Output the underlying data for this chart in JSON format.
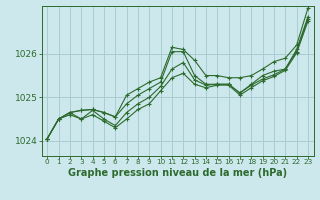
{
  "title": "Graphe pression niveau de la mer (hPa)",
  "bg_color": "#cce8ec",
  "grid_color": "#aacdd2",
  "line_color": "#2d6a2d",
  "xlim": [
    -0.5,
    23.5
  ],
  "ylim": [
    1023.65,
    1027.1
  ],
  "yticks": [
    1024,
    1025,
    1026
  ],
  "xtick_labels": [
    "0",
    "1",
    "2",
    "3",
    "4",
    "5",
    "6",
    "7",
    "8",
    "9",
    "10",
    "11",
    "12",
    "13",
    "14",
    "15",
    "16",
    "17",
    "18",
    "19",
    "20",
    "21",
    "22",
    "23"
  ],
  "series": [
    [
      1024.05,
      1024.5,
      1024.65,
      1024.7,
      1024.72,
      1024.65,
      1024.55,
      1025.05,
      1025.2,
      1025.35,
      1025.45,
      1026.15,
      1026.1,
      1025.85,
      1025.5,
      1025.5,
      1025.45,
      1025.45,
      1025.5,
      1025.65,
      1025.82,
      1025.9,
      1026.2,
      1027.05
    ],
    [
      1024.05,
      1024.5,
      1024.65,
      1024.7,
      1024.72,
      1024.65,
      1024.55,
      1024.85,
      1025.05,
      1025.2,
      1025.35,
      1026.05,
      1026.05,
      1025.5,
      1025.3,
      1025.3,
      1025.3,
      1025.1,
      1025.3,
      1025.5,
      1025.6,
      1025.65,
      1026.1,
      1026.85
    ],
    [
      1024.05,
      1024.5,
      1024.65,
      1024.5,
      1024.7,
      1024.5,
      1024.35,
      1024.65,
      1024.85,
      1025.0,
      1025.25,
      1025.65,
      1025.8,
      1025.4,
      1025.28,
      1025.3,
      1025.3,
      1025.1,
      1025.28,
      1025.42,
      1025.52,
      1025.65,
      1026.05,
      1026.8
    ],
    [
      1024.05,
      1024.5,
      1024.6,
      1024.5,
      1024.6,
      1024.45,
      1024.3,
      1024.5,
      1024.72,
      1024.85,
      1025.15,
      1025.45,
      1025.55,
      1025.3,
      1025.22,
      1025.28,
      1025.28,
      1025.05,
      1025.22,
      1025.38,
      1025.48,
      1025.62,
      1026.02,
      1026.75
    ]
  ]
}
